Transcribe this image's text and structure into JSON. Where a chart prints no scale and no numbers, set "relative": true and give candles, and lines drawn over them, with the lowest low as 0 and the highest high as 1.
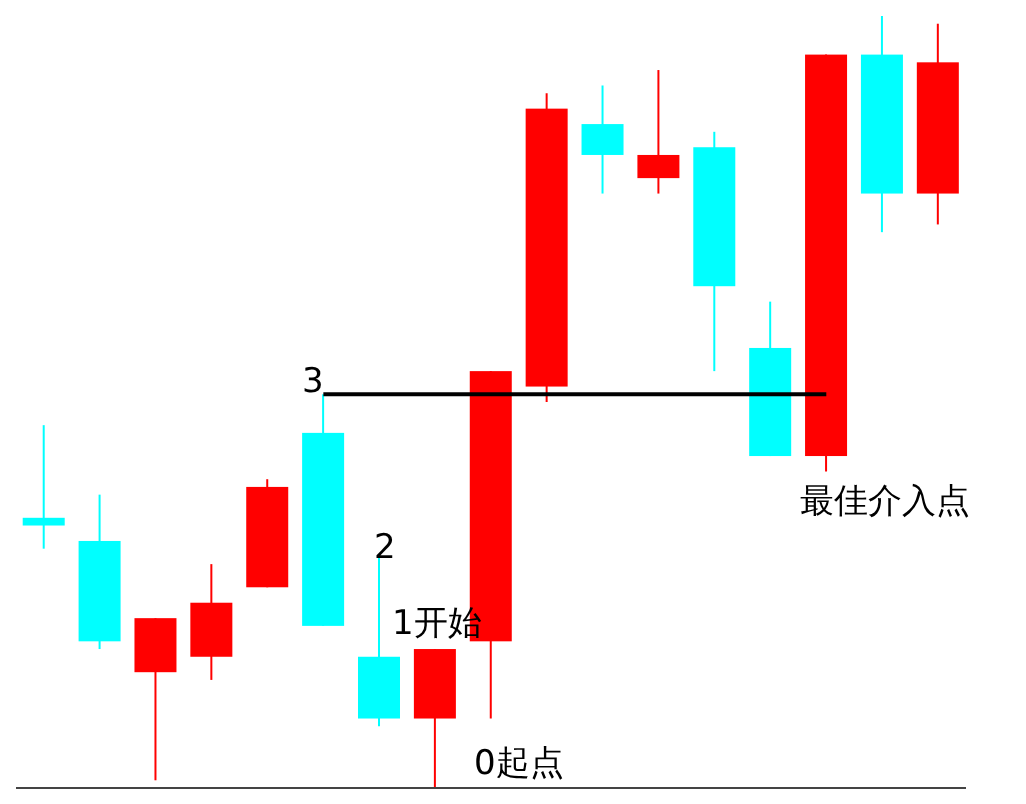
{
  "chart_data": {
    "type": "candlestick",
    "relative": true,
    "categories": [
      null,
      null,
      null,
      null,
      null,
      null,
      null,
      null,
      null,
      null,
      null,
      null,
      null,
      null,
      null,
      null,
      null
    ],
    "ohlc": [
      [
        0.35,
        0.47,
        0.31,
        0.34
      ],
      [
        0.32,
        0.38,
        0.18,
        0.19
      ],
      [
        0.15,
        0.22,
        0.01,
        0.22
      ],
      [
        0.17,
        0.29,
        0.14,
        0.24
      ],
      [
        0.26,
        0.4,
        0.26,
        0.39
      ],
      [
        0.46,
        0.51,
        0.21,
        0.21
      ],
      [
        0.17,
        0.3,
        0.08,
        0.09
      ],
      [
        0.09,
        0.18,
        0,
        0.18
      ],
      [
        0.19,
        0.54,
        0.09,
        0.54
      ],
      [
        0.52,
        0.9,
        0.5,
        0.88
      ],
      [
        0.86,
        0.91,
        0.77,
        0.82
      ],
      [
        0.79,
        0.93,
        0.77,
        0.82
      ],
      [
        0.83,
        0.85,
        0.54,
        0.65
      ],
      [
        0.57,
        0.63,
        0.43,
        0.43
      ],
      [
        0.43,
        0.95,
        0.41,
        0.95
      ],
      [
        0.95,
        1,
        0.72,
        0.77
      ],
      [
        0.77,
        0.99,
        0.73,
        0.94
      ]
    ],
    "colors": [
      "#00ffff",
      "#00ffff",
      "#ff0000",
      "#ff0000",
      "#ff0000",
      "#00ffff",
      "#00ffff",
      "#ff0000",
      "#ff0000",
      "#ff0000",
      "#00ffff",
      "#ff0000",
      "#00ffff",
      "#00ffff",
      "#ff0000",
      "#00ffff",
      "#ff0000"
    ],
    "series": [
      {
        "type": "line",
        "color": "#000000",
        "values": [
          null,
          null,
          null,
          null,
          null,
          0.51,
          null,
          null,
          null,
          null,
          null,
          null,
          null,
          null,
          0.51,
          null,
          null
        ]
      }
    ],
    "annotations": [
      "3",
      "2",
      "1开始",
      "0起点",
      "最佳介入点"
    ]
  }
}
